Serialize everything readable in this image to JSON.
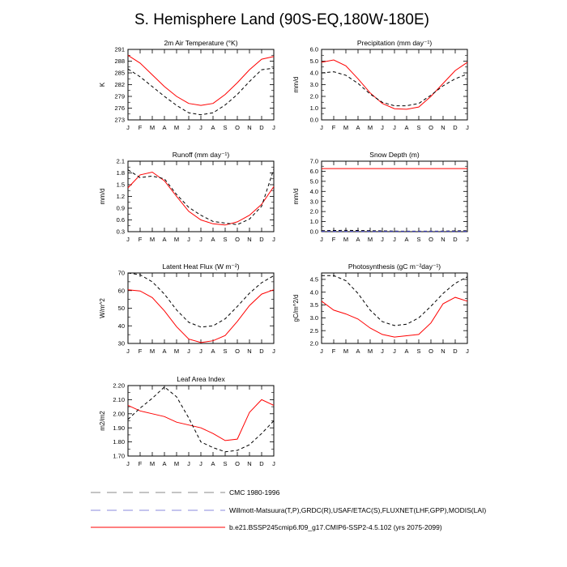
{
  "title": "S. Hemisphere Land (90S-EQ,180W-180E)",
  "months": [
    "J",
    "F",
    "M",
    "A",
    "M",
    "J",
    "J",
    "A",
    "S",
    "O",
    "N",
    "D",
    "J"
  ],
  "legend": [
    {
      "label": "CMC 1980-1996",
      "color": "#888888",
      "dash": "long"
    },
    {
      "label": "Willmott-Matsuura(T,P),GRDC(R),USAF/ETAC(S),FLUXNET(LHF,GPP),MODIS(LAI)",
      "color": "#8888dd",
      "dash": "long"
    },
    {
      "label": "b.e21.BSSP245cmip6.f09_g17.CMIP6-SSP2-4.5.102 (yrs 2075-2099)",
      "color": "#ff0000",
      "dash": "solid"
    }
  ],
  "chart_data": [
    {
      "type": "line",
      "title": "2m Air Temperature (°K)",
      "ylabel": "K",
      "ylim": [
        273,
        291
      ],
      "yticks": [
        "273",
        "276",
        "279",
        "282",
        "285",
        "288",
        "291"
      ],
      "x": [
        1,
        2,
        3,
        4,
        5,
        6,
        7,
        8,
        9,
        10,
        11,
        12,
        13
      ],
      "series": [
        {
          "color": "#ff0000",
          "style": "solid",
          "values": [
            289.5,
            287.5,
            284.5,
            281.5,
            279.0,
            277.2,
            276.7,
            277.2,
            279.5,
            282.5,
            285.8,
            288.5,
            289.2
          ]
        },
        {
          "color": "#000000",
          "style": "dashed",
          "values": [
            286.0,
            284.0,
            281.5,
            279.0,
            276.7,
            274.8,
            274.3,
            274.8,
            276.8,
            279.5,
            282.8,
            285.8,
            286.2
          ]
        }
      ]
    },
    {
      "type": "line",
      "title": "Precipitation (mm day⁻¹)",
      "ylabel": "mm/d",
      "ylim": [
        0,
        6
      ],
      "yticks": [
        "0.0",
        "1.0",
        "2.0",
        "3.0",
        "4.0",
        "5.0",
        "6.0"
      ],
      "x": [
        1,
        2,
        3,
        4,
        5,
        6,
        7,
        8,
        9,
        10,
        11,
        12,
        13
      ],
      "series": [
        {
          "color": "#ff0000",
          "style": "solid",
          "values": [
            4.9,
            5.1,
            4.6,
            3.5,
            2.3,
            1.4,
            0.95,
            0.9,
            1.1,
            2.0,
            3.1,
            4.2,
            4.9
          ]
        },
        {
          "color": "#000000",
          "style": "dashed",
          "values": [
            4.0,
            4.1,
            3.8,
            3.1,
            2.2,
            1.5,
            1.2,
            1.2,
            1.4,
            2.1,
            2.9,
            3.5,
            3.9
          ]
        }
      ]
    },
    {
      "type": "line",
      "title": "Runoff (mm day⁻¹)",
      "ylabel": "mm/d",
      "ylim": [
        0.3,
        2.1
      ],
      "yticks": [
        "0.3",
        "0.6",
        "0.9",
        "1.2",
        "1.5",
        "1.8",
        "2.1"
      ],
      "x": [
        1,
        2,
        3,
        4,
        5,
        6,
        7,
        8,
        9,
        10,
        11,
        12,
        13
      ],
      "series": [
        {
          "color": "#ff0000",
          "style": "solid",
          "values": [
            1.42,
            1.75,
            1.82,
            1.6,
            1.2,
            0.82,
            0.6,
            0.5,
            0.47,
            0.55,
            0.72,
            1.0,
            1.45
          ]
        },
        {
          "color": "#000000",
          "style": "dashed",
          "values": [
            1.88,
            1.68,
            1.72,
            1.65,
            1.25,
            0.92,
            0.72,
            0.56,
            0.52,
            0.48,
            0.62,
            0.95,
            1.9
          ]
        }
      ]
    },
    {
      "type": "line",
      "title": "Snow Depth (m)",
      "ylabel": "mm/d",
      "ylim": [
        0,
        7
      ],
      "yticks": [
        "0.0",
        "1.0",
        "2.0",
        "3.0",
        "4.0",
        "5.0",
        "6.0",
        "7.0"
      ],
      "x": [
        1,
        2,
        3,
        4,
        5,
        6,
        7,
        8,
        9,
        10,
        11,
        12,
        13
      ],
      "series": [
        {
          "color": "#ff0000",
          "style": "solid",
          "values": [
            6.27,
            6.27,
            6.27,
            6.27,
            6.27,
            6.27,
            6.27,
            6.27,
            6.27,
            6.27,
            6.27,
            6.27,
            6.27
          ]
        },
        {
          "color": "#000000",
          "style": "dashed",
          "values": [
            0.1,
            0.12,
            0.13,
            0.12,
            0.1,
            0.08,
            0.06,
            0.05,
            0.05,
            0.05,
            0.06,
            0.08,
            0.1
          ]
        },
        {
          "color": "#4444cc",
          "style": "dashed",
          "values": [
            0.03,
            0.03,
            0.03,
            0.03,
            0.03,
            0.03,
            0.03,
            0.03,
            0.03,
            0.03,
            0.03,
            0.03,
            0.03
          ]
        }
      ]
    },
    {
      "type": "line",
      "title": "Latent Heat Flux (W m⁻²)",
      "ylabel": "W/m^2",
      "ylim": [
        30,
        70
      ],
      "yticks": [
        "30",
        "40",
        "50",
        "60",
        "70"
      ],
      "x": [
        1,
        2,
        3,
        4,
        5,
        6,
        7,
        8,
        9,
        10,
        11,
        12,
        13
      ],
      "series": [
        {
          "color": "#ff0000",
          "style": "solid",
          "values": [
            60.5,
            59.8,
            56.0,
            48.5,
            39.5,
            32.5,
            30.5,
            31.5,
            34.5,
            42.5,
            51.5,
            58.0,
            60.5
          ]
        },
        {
          "color": "#000000",
          "style": "dashed",
          "values": [
            70.0,
            69.0,
            65.0,
            58.0,
            49.0,
            42.0,
            39.3,
            40.0,
            44.0,
            51.0,
            58.5,
            64.5,
            68.5
          ]
        }
      ]
    },
    {
      "type": "line",
      "title": "Photosynthesis (gC m⁻²day⁻¹)",
      "ylabel": "gC/m^2/d",
      "ylim": [
        2.0,
        4.75
      ],
      "yticks": [
        "2.0",
        "2.5",
        "3.0",
        "3.5",
        "4.0",
        "4.5"
      ],
      "x": [
        1,
        2,
        3,
        4,
        5,
        6,
        7,
        8,
        9,
        10,
        11,
        12,
        13
      ],
      "series": [
        {
          "color": "#ff0000",
          "style": "solid",
          "values": [
            3.65,
            3.3,
            3.15,
            2.95,
            2.6,
            2.35,
            2.25,
            2.3,
            2.35,
            2.8,
            3.55,
            3.8,
            3.65
          ]
        },
        {
          "color": "#000000",
          "style": "dashed",
          "values": [
            4.65,
            4.65,
            4.45,
            3.95,
            3.3,
            2.85,
            2.7,
            2.75,
            3.0,
            3.45,
            3.95,
            4.35,
            4.6
          ]
        }
      ]
    },
    {
      "type": "line",
      "title": "Leaf Area Index",
      "ylabel": "m2/m2",
      "ylim": [
        1.7,
        2.2
      ],
      "yticks": [
        "1.70",
        "1.80",
        "1.90",
        "2.00",
        "2.10",
        "2.20"
      ],
      "x": [
        1,
        2,
        3,
        4,
        5,
        6,
        7,
        8,
        9,
        10,
        11,
        12,
        13
      ],
      "series": [
        {
          "color": "#ff0000",
          "style": "solid",
          "values": [
            2.06,
            2.02,
            2.0,
            1.98,
            1.94,
            1.92,
            1.9,
            1.86,
            1.81,
            1.82,
            2.01,
            2.1,
            2.06
          ]
        },
        {
          "color": "#000000",
          "style": "dashed",
          "values": [
            1.96,
            2.04,
            2.11,
            2.19,
            2.12,
            1.97,
            1.8,
            1.76,
            1.73,
            1.74,
            1.78,
            1.86,
            1.95
          ]
        }
      ]
    }
  ]
}
